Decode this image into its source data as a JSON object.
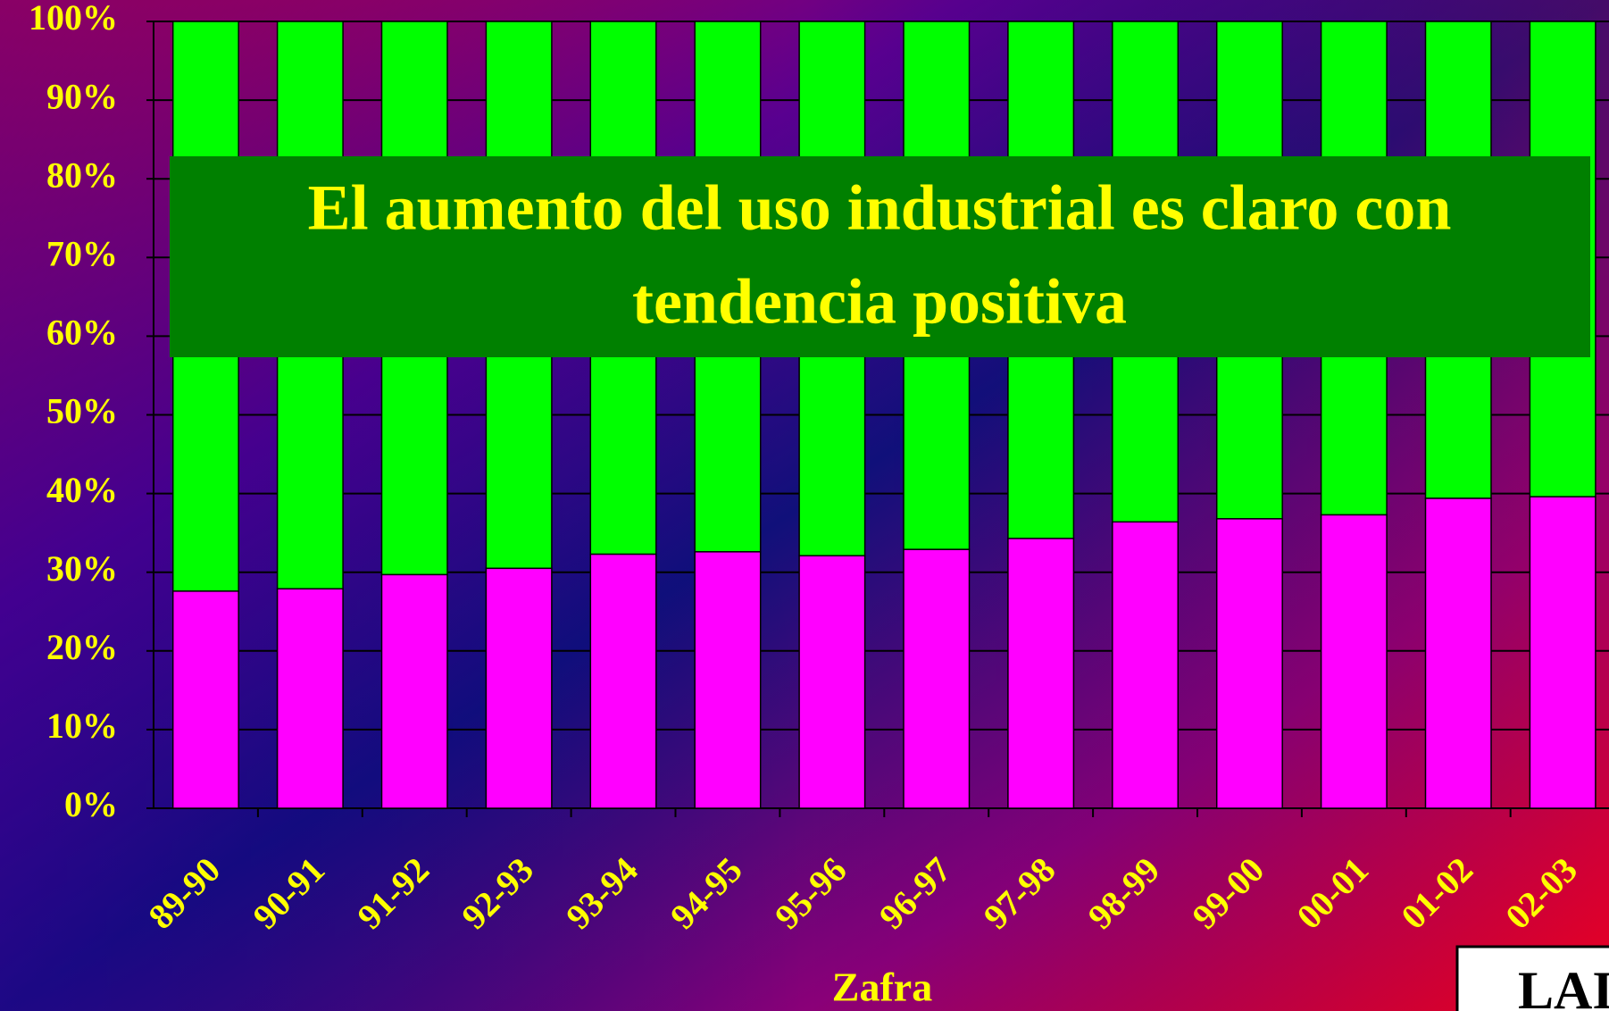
{
  "chart_data": {
    "type": "stacked_bar",
    "categories": [
      "89-90",
      "90-91",
      "91-92",
      "92-93",
      "93-94",
      "94-95",
      "95-96",
      "96-97",
      "97-98",
      "98-99",
      "99-00",
      "00-01",
      "01-02",
      "02-03"
    ],
    "series": [
      {
        "color": "#ff00ff",
        "values": [
          27.6,
          27.9,
          29.7,
          30.5,
          32.3,
          32.6,
          32.1,
          32.9,
          34.3,
          36.4,
          36.8,
          37.3,
          39.4,
          39.6
        ]
      },
      {
        "color": "#00ff00",
        "values": [
          72.4,
          72.1,
          70.3,
          69.5,
          67.7,
          67.4,
          67.9,
          67.1,
          65.7,
          63.6,
          63.2,
          62.7,
          60.6,
          60.4
        ]
      }
    ],
    "ylim": [
      0,
      100
    ],
    "yticks": [
      {
        "value": 0,
        "label": "0%"
      },
      {
        "value": 10,
        "label": "10%"
      },
      {
        "value": 20,
        "label": "20%"
      },
      {
        "value": 30,
        "label": "30%"
      },
      {
        "value": 40,
        "label": "40%"
      },
      {
        "value": 50,
        "label": "50%"
      },
      {
        "value": 60,
        "label": "60%"
      },
      {
        "value": 70,
        "label": "70%"
      },
      {
        "value": 80,
        "label": "80%"
      },
      {
        "value": 90,
        "label": "90%"
      },
      {
        "value": 100,
        "label": "100%"
      }
    ],
    "grid": true,
    "xlabel": "Zafra",
    "annotation": [
      "El aumento del uso industrial es claro con",
      "tendencia positiva"
    ],
    "logo_text": "LAIC"
  }
}
